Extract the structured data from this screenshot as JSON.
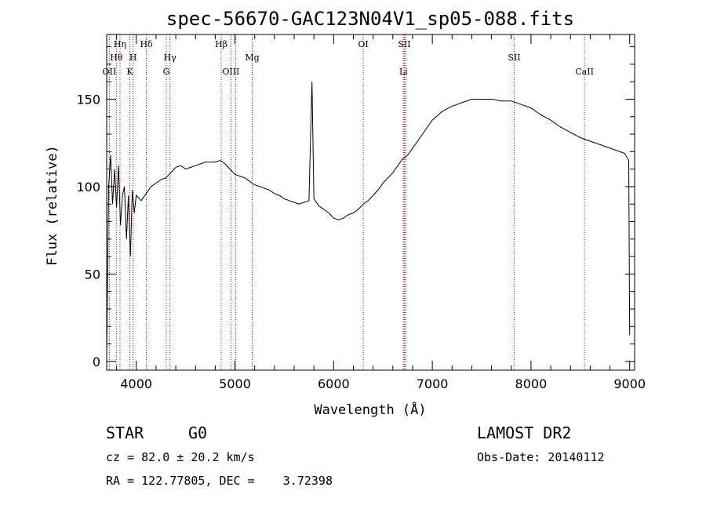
{
  "chart_data": {
    "type": "line",
    "title": "spec-56670-GAC123N04V1_sp05-088.fits",
    "xlabel": "Wavelength (Å)",
    "ylabel": "Flux (relative)",
    "xlim": [
      3700,
      9050
    ],
    "ylim": [
      -5,
      187
    ],
    "xticks": [
      4000,
      5000,
      6000,
      7000,
      8000,
      9000
    ],
    "yticks": [
      0,
      50,
      100,
      150
    ],
    "grid": false,
    "spectrum": {
      "x": [
        3700,
        3720,
        3740,
        3760,
        3780,
        3800,
        3820,
        3840,
        3860,
        3880,
        3900,
        3920,
        3940,
        3960,
        3980,
        4000,
        4050,
        4100,
        4150,
        4200,
        4250,
        4300,
        4350,
        4400,
        4450,
        4500,
        4550,
        4600,
        4650,
        4700,
        4750,
        4800,
        4850,
        4900,
        4950,
        5000,
        5050,
        5100,
        5150,
        5200,
        5250,
        5300,
        5350,
        5400,
        5450,
        5500,
        5550,
        5600,
        5650,
        5700,
        5750,
        5780,
        5800,
        5850,
        5900,
        5950,
        6000,
        6050,
        6100,
        6150,
        6200,
        6250,
        6300,
        6350,
        6400,
        6450,
        6500,
        6550,
        6600,
        6650,
        6700,
        6750,
        6800,
        6850,
        6900,
        6950,
        7000,
        7100,
        7200,
        7300,
        7400,
        7500,
        7600,
        7700,
        7800,
        7900,
        8000,
        8100,
        8200,
        8300,
        8400,
        8500,
        8600,
        8700,
        8800,
        8900,
        8950,
        8990,
        9000
      ],
      "y": [
        5,
        100,
        118,
        90,
        110,
        88,
        112,
        78,
        95,
        100,
        70,
        95,
        60,
        98,
        85,
        95,
        92,
        96,
        100,
        102,
        104,
        105,
        108,
        111,
        112,
        110,
        111,
        112,
        113,
        114,
        114,
        114,
        115,
        113,
        110,
        107,
        106,
        105,
        103,
        101,
        100,
        99,
        98,
        96,
        95,
        93,
        92,
        91,
        90,
        91,
        92,
        160,
        93,
        89,
        87,
        85,
        82,
        81,
        82,
        84,
        85,
        87,
        90,
        92,
        95,
        98,
        102,
        105,
        108,
        112,
        116,
        118,
        122,
        126,
        130,
        134,
        138,
        143,
        146,
        148,
        150,
        150,
        150,
        149,
        149,
        147,
        145,
        141,
        138,
        134,
        131,
        128,
        126,
        124,
        122,
        120,
        119,
        115,
        15
      ]
    },
    "line_markers": [
      {
        "label": "OII",
        "x": 3727,
        "row": 3
      },
      {
        "label": "Hθ",
        "x": 3798,
        "row": 2
      },
      {
        "label": "Hη",
        "x": 3835,
        "row": 1
      },
      {
        "label": "K",
        "x": 3934,
        "row": 3
      },
      {
        "label": "H",
        "x": 3968,
        "row": 2
      },
      {
        "label": "Hδ",
        "x": 4102,
        "row": 1
      },
      {
        "label": "G",
        "x": 4304,
        "row": 3
      },
      {
        "label": "Hγ",
        "x": 4341,
        "row": 2
      },
      {
        "label": "Hβ",
        "x": 4861,
        "row": 1
      },
      {
        "label": "OIII",
        "x": 4959,
        "row": 3
      },
      {
        "label": "OIII",
        "x": 5007,
        "row": 3,
        "hide_label": true
      },
      {
        "label": "Mg",
        "x": 5175,
        "row": 2
      },
      {
        "label": "OI",
        "x": 6300,
        "row": 1
      },
      {
        "label": "SII",
        "x": 6717,
        "row": 1
      },
      {
        "label": "Li",
        "x": 6707,
        "row": 3
      },
      {
        "label": "SII",
        "x": 6731,
        "row": 1,
        "hide_label": true
      },
      {
        "label": "SII",
        "x": 7830,
        "row": 2
      },
      {
        "label": "CaII",
        "x": 8542,
        "row": 3
      }
    ]
  },
  "info": {
    "class_label": "STAR",
    "subclass": "G0",
    "survey": "LAMOST DR2",
    "cz": "cz = 82.0 ± 20.2 km/s",
    "obs_date": "Obs-Date: 20140112",
    "coords": "RA = 122.77805, DEC =    3.72398"
  },
  "colors": {
    "marker": "#b30000",
    "spectrum": "#000000"
  }
}
